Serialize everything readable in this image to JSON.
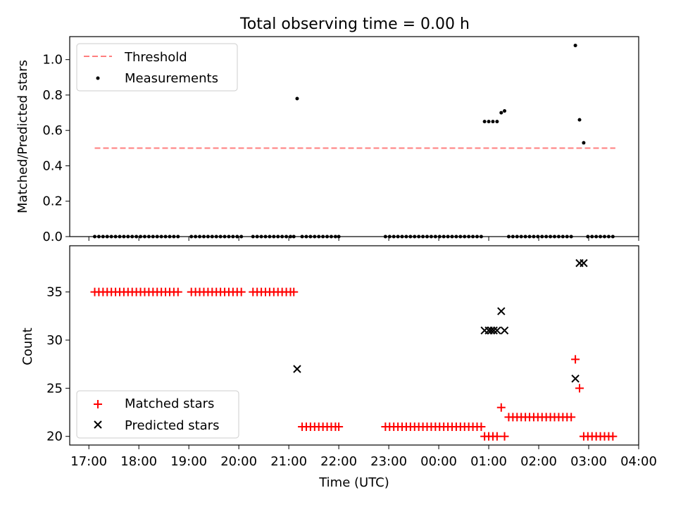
{
  "title": "Total observing time = 0.00 h",
  "chart_data": [
    {
      "type": "scatter",
      "ylabel": "Matched/Predicted stars",
      "xlabel": "",
      "ylim": [
        0,
        1.13
      ],
      "yticks": [
        0.0,
        0.2,
        0.4,
        0.6,
        0.8,
        1.0
      ],
      "ytick_labels": [
        "0.0",
        "0.2",
        "0.4",
        "0.6",
        "0.8",
        "1.0"
      ],
      "legend_position": "top-left",
      "threshold": {
        "name": "Threshold",
        "value": 0.5,
        "x_start": "17:07",
        "x_end": "03:32",
        "color": "#ff7f7f",
        "style": "dashed"
      },
      "series": [
        {
          "name": "Measurements",
          "color": "#000000",
          "marker": "dot",
          "points": [
            [
              "17:07",
              0
            ],
            [
              "17:12",
              0
            ],
            [
              "17:17",
              0
            ],
            [
              "17:22",
              0
            ],
            [
              "17:27",
              0
            ],
            [
              "17:32",
              0
            ],
            [
              "17:37",
              0
            ],
            [
              "17:42",
              0
            ],
            [
              "17:47",
              0
            ],
            [
              "17:52",
              0
            ],
            [
              "17:57",
              0
            ],
            [
              "18:02",
              0
            ],
            [
              "18:07",
              0
            ],
            [
              "18:12",
              0
            ],
            [
              "18:17",
              0
            ],
            [
              "18:22",
              0
            ],
            [
              "18:27",
              0
            ],
            [
              "18:32",
              0
            ],
            [
              "18:37",
              0
            ],
            [
              "18:42",
              0
            ],
            [
              "18:47",
              0
            ],
            [
              "19:03",
              0
            ],
            [
              "19:08",
              0
            ],
            [
              "19:13",
              0
            ],
            [
              "19:18",
              0
            ],
            [
              "19:23",
              0
            ],
            [
              "19:28",
              0
            ],
            [
              "19:33",
              0
            ],
            [
              "19:38",
              0
            ],
            [
              "19:43",
              0
            ],
            [
              "19:48",
              0
            ],
            [
              "19:53",
              0
            ],
            [
              "19:58",
              0
            ],
            [
              "20:03",
              0
            ],
            [
              "20:17",
              0
            ],
            [
              "20:22",
              0
            ],
            [
              "20:27",
              0
            ],
            [
              "20:32",
              0
            ],
            [
              "20:37",
              0
            ],
            [
              "20:42",
              0
            ],
            [
              "20:47",
              0
            ],
            [
              "20:52",
              0
            ],
            [
              "20:57",
              0
            ],
            [
              "21:02",
              0
            ],
            [
              "21:06",
              0
            ],
            [
              "21:10",
              0.78
            ],
            [
              "21:16",
              0
            ],
            [
              "21:21",
              0
            ],
            [
              "21:26",
              0
            ],
            [
              "21:31",
              0
            ],
            [
              "21:36",
              0
            ],
            [
              "21:41",
              0
            ],
            [
              "21:46",
              0
            ],
            [
              "21:51",
              0
            ],
            [
              "21:56",
              0
            ],
            [
              "22:00",
              0
            ],
            [
              "22:56",
              0
            ],
            [
              "23:01",
              0
            ],
            [
              "23:06",
              0
            ],
            [
              "23:11",
              0
            ],
            [
              "23:16",
              0
            ],
            [
              "23:21",
              0
            ],
            [
              "23:26",
              0
            ],
            [
              "23:31",
              0
            ],
            [
              "23:36",
              0
            ],
            [
              "23:41",
              0
            ],
            [
              "23:46",
              0
            ],
            [
              "23:51",
              0
            ],
            [
              "23:56",
              0
            ],
            [
              "00:01",
              0
            ],
            [
              "00:06",
              0
            ],
            [
              "00:11",
              0
            ],
            [
              "00:16",
              0
            ],
            [
              "00:21",
              0
            ],
            [
              "00:26",
              0
            ],
            [
              "00:31",
              0
            ],
            [
              "00:36",
              0
            ],
            [
              "00:41",
              0
            ],
            [
              "00:46",
              0
            ],
            [
              "00:51",
              0
            ],
            [
              "00:55",
              0.65
            ],
            [
              "01:00",
              0.65
            ],
            [
              "01:05",
              0.65
            ],
            [
              "01:10",
              0.65
            ],
            [
              "01:15",
              0.7
            ],
            [
              "01:19",
              0.71
            ],
            [
              "01:24",
              0
            ],
            [
              "01:29",
              0
            ],
            [
              "01:34",
              0
            ],
            [
              "01:39",
              0
            ],
            [
              "01:44",
              0
            ],
            [
              "01:49",
              0
            ],
            [
              "01:54",
              0
            ],
            [
              "01:59",
              0
            ],
            [
              "02:04",
              0
            ],
            [
              "02:09",
              0
            ],
            [
              "02:14",
              0
            ],
            [
              "02:19",
              0
            ],
            [
              "02:24",
              0
            ],
            [
              "02:29",
              0
            ],
            [
              "02:34",
              0
            ],
            [
              "02:39",
              0
            ],
            [
              "02:44",
              1.08
            ],
            [
              "02:49",
              0.66
            ],
            [
              "02:54",
              0.53
            ],
            [
              "02:59",
              0
            ],
            [
              "03:04",
              0
            ],
            [
              "03:09",
              0
            ],
            [
              "03:14",
              0
            ],
            [
              "03:19",
              0
            ],
            [
              "03:24",
              0
            ],
            [
              "03:29",
              0
            ]
          ]
        }
      ]
    },
    {
      "type": "scatter",
      "ylabel": "Count",
      "xlabel": "Time (UTC)",
      "ylim": [
        19.1,
        39.8
      ],
      "yticks": [
        20,
        25,
        30,
        35
      ],
      "ytick_labels": [
        "20",
        "25",
        "30",
        "35"
      ],
      "x_range": [
        "16:37",
        "04:00"
      ],
      "xticks": [
        "17:00",
        "18:00",
        "19:00",
        "20:00",
        "21:00",
        "22:00",
        "23:00",
        "00:00",
        "01:00",
        "02:00",
        "03:00",
        "04:00"
      ],
      "legend_position": "lower-left",
      "series": [
        {
          "name": "Matched stars",
          "color": "#ff0000",
          "marker": "plus",
          "points": [
            [
              "17:07",
              35
            ],
            [
              "17:12",
              35
            ],
            [
              "17:17",
              35
            ],
            [
              "17:22",
              35
            ],
            [
              "17:27",
              35
            ],
            [
              "17:32",
              35
            ],
            [
              "17:37",
              35
            ],
            [
              "17:42",
              35
            ],
            [
              "17:47",
              35
            ],
            [
              "17:52",
              35
            ],
            [
              "17:57",
              35
            ],
            [
              "18:02",
              35
            ],
            [
              "18:07",
              35
            ],
            [
              "18:12",
              35
            ],
            [
              "18:17",
              35
            ],
            [
              "18:22",
              35
            ],
            [
              "18:27",
              35
            ],
            [
              "18:32",
              35
            ],
            [
              "18:37",
              35
            ],
            [
              "18:42",
              35
            ],
            [
              "18:47",
              35
            ],
            [
              "19:03",
              35
            ],
            [
              "19:08",
              35
            ],
            [
              "19:13",
              35
            ],
            [
              "19:18",
              35
            ],
            [
              "19:23",
              35
            ],
            [
              "19:28",
              35
            ],
            [
              "19:33",
              35
            ],
            [
              "19:38",
              35
            ],
            [
              "19:43",
              35
            ],
            [
              "19:48",
              35
            ],
            [
              "19:53",
              35
            ],
            [
              "19:58",
              35
            ],
            [
              "20:03",
              35
            ],
            [
              "20:17",
              35
            ],
            [
              "20:22",
              35
            ],
            [
              "20:27",
              35
            ],
            [
              "20:32",
              35
            ],
            [
              "20:37",
              35
            ],
            [
              "20:42",
              35
            ],
            [
              "20:47",
              35
            ],
            [
              "20:52",
              35
            ],
            [
              "20:57",
              35
            ],
            [
              "21:02",
              35
            ],
            [
              "21:06",
              35
            ],
            [
              "21:16",
              21
            ],
            [
              "21:21",
              21
            ],
            [
              "21:26",
              21
            ],
            [
              "21:31",
              21
            ],
            [
              "21:36",
              21
            ],
            [
              "21:41",
              21
            ],
            [
              "21:46",
              21
            ],
            [
              "21:51",
              21
            ],
            [
              "21:56",
              21
            ],
            [
              "22:00",
              21
            ],
            [
              "22:56",
              21
            ],
            [
              "23:01",
              21
            ],
            [
              "23:06",
              21
            ],
            [
              "23:11",
              21
            ],
            [
              "23:16",
              21
            ],
            [
              "23:21",
              21
            ],
            [
              "23:26",
              21
            ],
            [
              "23:31",
              21
            ],
            [
              "23:36",
              21
            ],
            [
              "23:41",
              21
            ],
            [
              "23:46",
              21
            ],
            [
              "23:51",
              21
            ],
            [
              "23:56",
              21
            ],
            [
              "00:01",
              21
            ],
            [
              "00:06",
              21
            ],
            [
              "00:11",
              21
            ],
            [
              "00:16",
              21
            ],
            [
              "00:21",
              21
            ],
            [
              "00:26",
              21
            ],
            [
              "00:31",
              21
            ],
            [
              "00:36",
              21
            ],
            [
              "00:41",
              21
            ],
            [
              "00:46",
              21
            ],
            [
              "00:51",
              21
            ],
            [
              "00:55",
              20
            ],
            [
              "01:00",
              20
            ],
            [
              "01:05",
              20
            ],
            [
              "01:10",
              20
            ],
            [
              "01:15",
              23
            ],
            [
              "01:19",
              20
            ],
            [
              "01:24",
              22
            ],
            [
              "01:29",
              22
            ],
            [
              "01:34",
              22
            ],
            [
              "01:39",
              22
            ],
            [
              "01:44",
              22
            ],
            [
              "01:49",
              22
            ],
            [
              "01:54",
              22
            ],
            [
              "01:59",
              22
            ],
            [
              "02:04",
              22
            ],
            [
              "02:09",
              22
            ],
            [
              "02:14",
              22
            ],
            [
              "02:19",
              22
            ],
            [
              "02:24",
              22
            ],
            [
              "02:29",
              22
            ],
            [
              "02:34",
              22
            ],
            [
              "02:39",
              22
            ],
            [
              "02:44",
              28
            ],
            [
              "02:49",
              25
            ],
            [
              "02:54",
              20
            ],
            [
              "02:59",
              20
            ],
            [
              "03:04",
              20
            ],
            [
              "03:09",
              20
            ],
            [
              "03:14",
              20
            ],
            [
              "03:19",
              20
            ],
            [
              "03:24",
              20
            ],
            [
              "03:29",
              20
            ]
          ]
        },
        {
          "name": "Predicted stars",
          "color": "#000000",
          "marker": "x",
          "points": [
            [
              "21:10",
              27
            ],
            [
              "00:55",
              31
            ],
            [
              "01:00",
              31
            ],
            [
              "01:03",
              31
            ],
            [
              "01:06",
              31
            ],
            [
              "01:10",
              31
            ],
            [
              "01:15",
              33
            ],
            [
              "01:19",
              31
            ],
            [
              "02:44",
              26
            ],
            [
              "02:49",
              38
            ],
            [
              "02:54",
              38
            ]
          ]
        }
      ]
    }
  ]
}
